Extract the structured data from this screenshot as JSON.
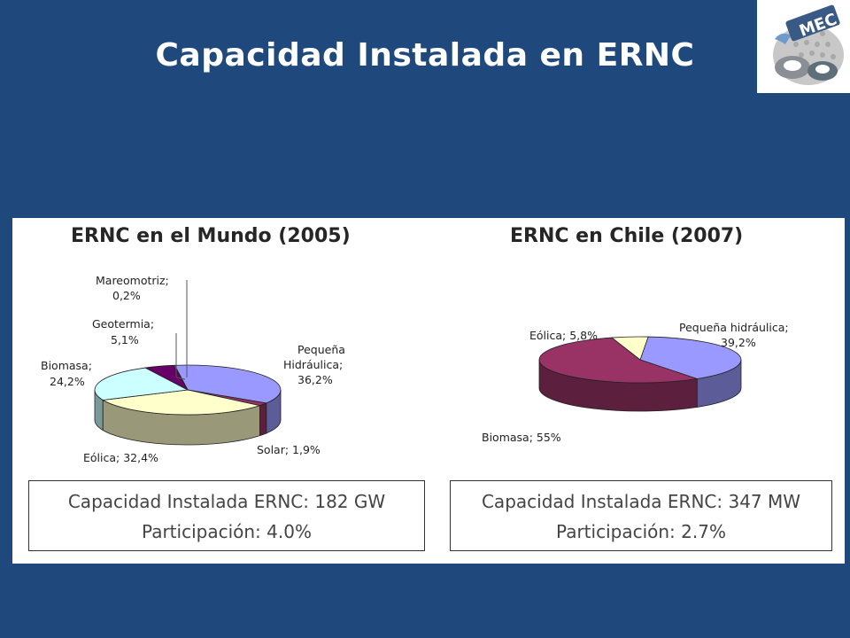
{
  "slide": {
    "title": "Capacidad Instalada en ERNC"
  },
  "logo": {
    "text": "MEC"
  },
  "charts": [
    {
      "title": "ERNC en el Mundo (2005)",
      "labels": {
        "mareomotriz_name": "Mareomotriz;",
        "mareomotriz_value": "0,2%",
        "geotermia_name": "Geotermia;",
        "geotermia_value": "5,1%",
        "biomasa_name": "Biomasa;",
        "biomasa_value": "24,2%",
        "hidraulica_name_1": "Pequeña",
        "hidraulica_name_2": "Hidráulica;",
        "hidraulica_value": "36,2%",
        "solar": "Solar; 1,9%",
        "eolica": "Eólica; 32,4%"
      },
      "summary": {
        "capacity": "Capacidad Instalada ERNC: 182 GW",
        "share": "Participación: 4.0%"
      }
    },
    {
      "title": "ERNC en Chile (2007)",
      "labels": {
        "eolica": "Eólica; 5,8%",
        "hidraulica_1": "Pequeña hidráulica;",
        "hidraulica_2": "39,2%",
        "biomasa": "Biomasa; 55%"
      },
      "summary": {
        "capacity": "Capacidad Instalada ERNC: 347 MW",
        "share": "Participación: 2.7%"
      }
    }
  ],
  "chart_data": [
    {
      "type": "pie",
      "title": "ERNC en el Mundo (2005)",
      "slices": [
        {
          "label": "Pequeña Hidráulica",
          "value": 36.2,
          "color": "#9999ff",
          "side": "#5c5c99"
        },
        {
          "label": "Solar",
          "value": 1.9,
          "color": "#993366",
          "side": "#5c1f3d"
        },
        {
          "label": "Eólica",
          "value": 32.4,
          "color": "#ffffcc",
          "side": "#99997a"
        },
        {
          "label": "Biomasa",
          "value": 24.2,
          "color": "#ccffff",
          "side": "#7a9999"
        },
        {
          "label": "Geotermia",
          "value": 5.1,
          "color": "#660066",
          "side": "#3d003d"
        },
        {
          "label": "Mareomotriz",
          "value": 0.2,
          "color": "#ff8080",
          "side": "#994d4d"
        }
      ]
    },
    {
      "type": "pie",
      "title": "ERNC en Chile (2007)",
      "slices": [
        {
          "label": "Pequeña hidráulica",
          "value": 39.2,
          "color": "#9999ff",
          "side": "#5c5c99"
        },
        {
          "label": "Biomasa",
          "value": 55,
          "color": "#993366",
          "side": "#5c1f3d"
        },
        {
          "label": "Eólica",
          "value": 5.8,
          "color": "#ffffcc",
          "side": "#99997a"
        }
      ]
    }
  ]
}
